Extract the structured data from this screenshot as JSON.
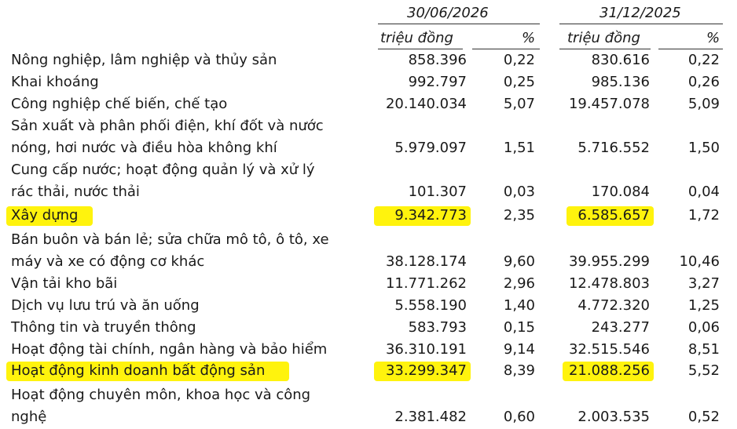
{
  "header": {
    "period_1": "30/06/2026",
    "period_2": "31/12/2025",
    "unit": "triệu đồng",
    "percent": "%"
  },
  "rows": [
    {
      "label": "Nông nghiệp, lâm nghiệp và thủy sản",
      "v1": "858.396",
      "p1": "0,22",
      "v2": "830.616",
      "p2": "0,22"
    },
    {
      "label": "Khai khoáng",
      "v1": "992.797",
      "p1": "0,25",
      "v2": "985.136",
      "p2": "0,26"
    },
    {
      "label": "Công nghiệp chế biến, chế tạo",
      "v1": "20.140.034",
      "p1": "5,07",
      "v2": "19.457.078",
      "p2": "5,09"
    },
    {
      "label_1": "Sản xuất và phân phối điện, khí đốt và nước",
      "label_2": "nóng, hơi nước và điều hòa không khí",
      "v1": "5.979.097",
      "p1": "1,51",
      "v2": "5.716.552",
      "p2": "1,50"
    },
    {
      "label_1": "Cung cấp nước; hoạt động quản lý và xử lý",
      "label_2": "rác thải, nước thải",
      "v1": "101.307",
      "p1": "0,03",
      "v2": "170.084",
      "p2": "0,04"
    },
    {
      "label": "Xây dựng",
      "v1": "9.342.773",
      "p1": "2,35",
      "v2": "6.585.657",
      "p2": "1,72",
      "highlighted": true
    },
    {
      "label_1": "Bán buôn và bán lẻ; sửa chữa mô tô, ô tô, xe",
      "label_2": "máy và xe có động cơ khác",
      "v1": "38.128.174",
      "p1": "9,60",
      "v2": "39.955.299",
      "p2": "10,46"
    },
    {
      "label": "Vận tải kho bãi",
      "v1": "11.771.262",
      "p1": "2,96",
      "v2": "12.478.803",
      "p2": "3,27"
    },
    {
      "label": "Dịch vụ lưu trú và ăn uống",
      "v1": "5.558.190",
      "p1": "1,40",
      "v2": "4.772.320",
      "p2": "1,25"
    },
    {
      "label": "Thông tin và truyền thông",
      "v1": "583.793",
      "p1": "0,15",
      "v2": "243.277",
      "p2": "0,06"
    },
    {
      "label": "Hoạt động tài chính, ngân hàng và bảo hiểm",
      "v1": "36.310.191",
      "p1": "9,14",
      "v2": "32.515.546",
      "p2": "8,51"
    },
    {
      "label": "Hoạt động kinh doanh bất động sản",
      "v1": "33.299.347",
      "p1": "8,39",
      "v2": "21.088.256",
      "p2": "5,52",
      "highlighted": true
    },
    {
      "label_1": "Hoạt động chuyên môn, khoa học và công",
      "label_2": "nghệ",
      "v1": "2.381.482",
      "p1": "0,60",
      "v2": "2.003.535",
      "p2": "0,52"
    }
  ],
  "colors": {
    "highlight": "#fff200",
    "text": "#1a1a1a"
  }
}
